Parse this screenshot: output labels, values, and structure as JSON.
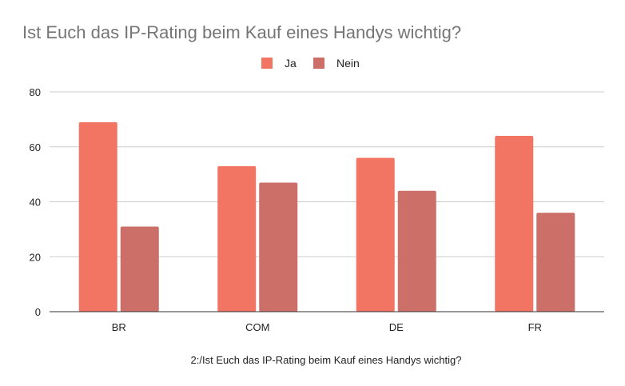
{
  "chart_data": {
    "type": "bar",
    "title": "Ist Euch das IP-Rating beim Kauf eines Handys wichtig?",
    "xlabel": "2:/Ist Euch das IP-Rating beim Kauf eines Handys wichtig?",
    "ylabel": "",
    "categories": [
      "BR",
      "COM",
      "DE",
      "FR"
    ],
    "series": [
      {
        "name": "Ja",
        "color": "#f27563",
        "values": [
          69,
          53,
          56,
          64
        ]
      },
      {
        "name": "Nein",
        "color": "#cc6f68",
        "values": [
          31,
          47,
          44,
          36
        ]
      }
    ],
    "ylim": [
      0,
      80
    ],
    "yticks": [
      "0",
      "20",
      "40",
      "60",
      "80"
    ],
    "grid": true,
    "legend": "top-center"
  }
}
